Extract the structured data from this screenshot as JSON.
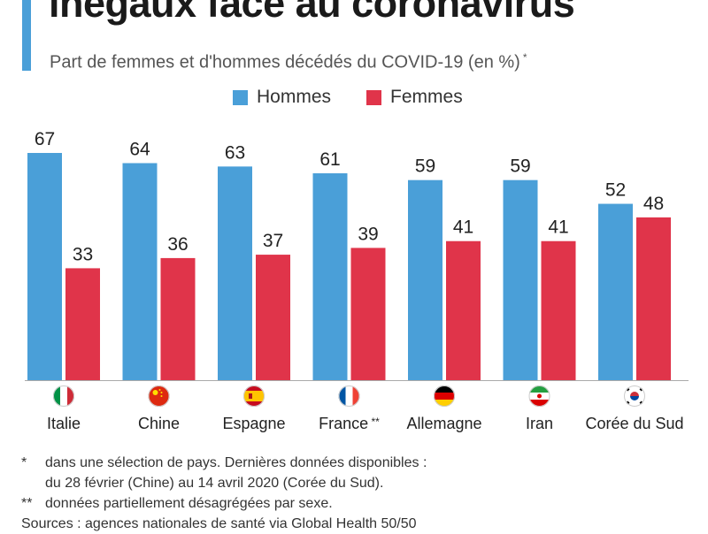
{
  "header": {
    "title": "inégaux face au coronavirus",
    "subtitle": "Part de femmes et d'hommes décédés du COVID-19 (en %)",
    "subtitle_mark": "*"
  },
  "legend": {
    "men": "Hommes",
    "women": "Femmes"
  },
  "colors": {
    "accent": "#4a9fd8",
    "men": "#4a9fd8",
    "women": "#e0344a",
    "baseline": "#aaaaaa"
  },
  "chart_data": {
    "type": "bar",
    "title": "Part de femmes et d'hommes décédés du COVID-19 (en %)",
    "categories": [
      "Italie",
      "Chine",
      "Espagne",
      "France **",
      "Allemagne",
      "Iran",
      "Corée du Sud"
    ],
    "series": [
      {
        "name": "Hommes",
        "values": [
          67,
          64,
          63,
          61,
          59,
          59,
          52
        ],
        "color": "#4a9fd8"
      },
      {
        "name": "Femmes",
        "values": [
          33,
          36,
          37,
          39,
          41,
          41,
          48
        ],
        "color": "#e0344a"
      }
    ],
    "flags": [
      "italy-flag",
      "china-flag",
      "spain-flag",
      "france-flag",
      "germany-flag",
      "iran-flag",
      "south-korea-flag"
    ],
    "ylim": [
      0,
      67
    ],
    "grid": false,
    "legend_position": "top-center"
  },
  "footnotes": {
    "note1_mark": "*",
    "note1_line1": "dans une sélection de pays. Dernières données disponibles :",
    "note1_line2": "du 28 février (Chine) au 14 avril 2020 (Corée du Sud).",
    "note2_mark": "**",
    "note2_text": "données partiellement désagrégées par sexe.",
    "sources": "Sources : agences nationales de santé via Global Health 50/50"
  }
}
